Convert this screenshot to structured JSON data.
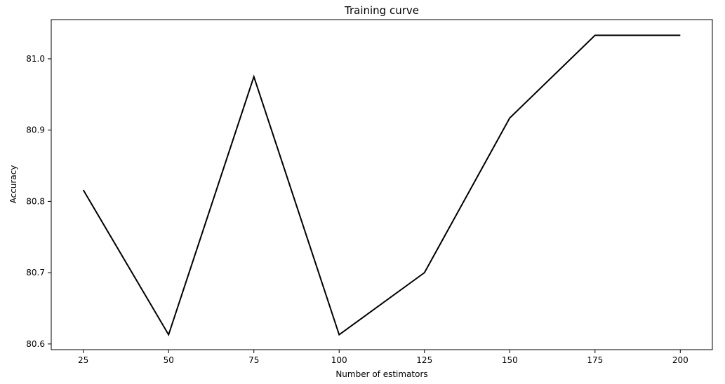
{
  "chart_data": {
    "type": "line",
    "title": "Training curve",
    "xlabel": "Number of estimators",
    "ylabel": "Accuracy",
    "x": [
      25,
      50,
      75,
      100,
      125,
      150,
      175,
      200
    ],
    "series": [
      {
        "values": [
          80.816,
          80.613,
          80.975,
          80.613,
          80.7,
          80.917,
          81.033,
          81.033
        ],
        "color": "#000000"
      }
    ],
    "xlim": [
      15.6,
      209.4
    ],
    "ylim": [
      80.592,
      81.055
    ],
    "xticks": [
      25,
      50,
      75,
      100,
      125,
      150,
      175,
      200
    ],
    "xtick_labels": [
      "25",
      "50",
      "75",
      "100",
      "125",
      "150",
      "175",
      "200"
    ],
    "yticks": [
      80.6,
      80.7,
      80.8,
      80.9,
      81.0
    ],
    "ytick_labels": [
      "80.6",
      "80.7",
      "80.8",
      "80.9",
      "81.0"
    ],
    "grid": false,
    "legend": false
  }
}
